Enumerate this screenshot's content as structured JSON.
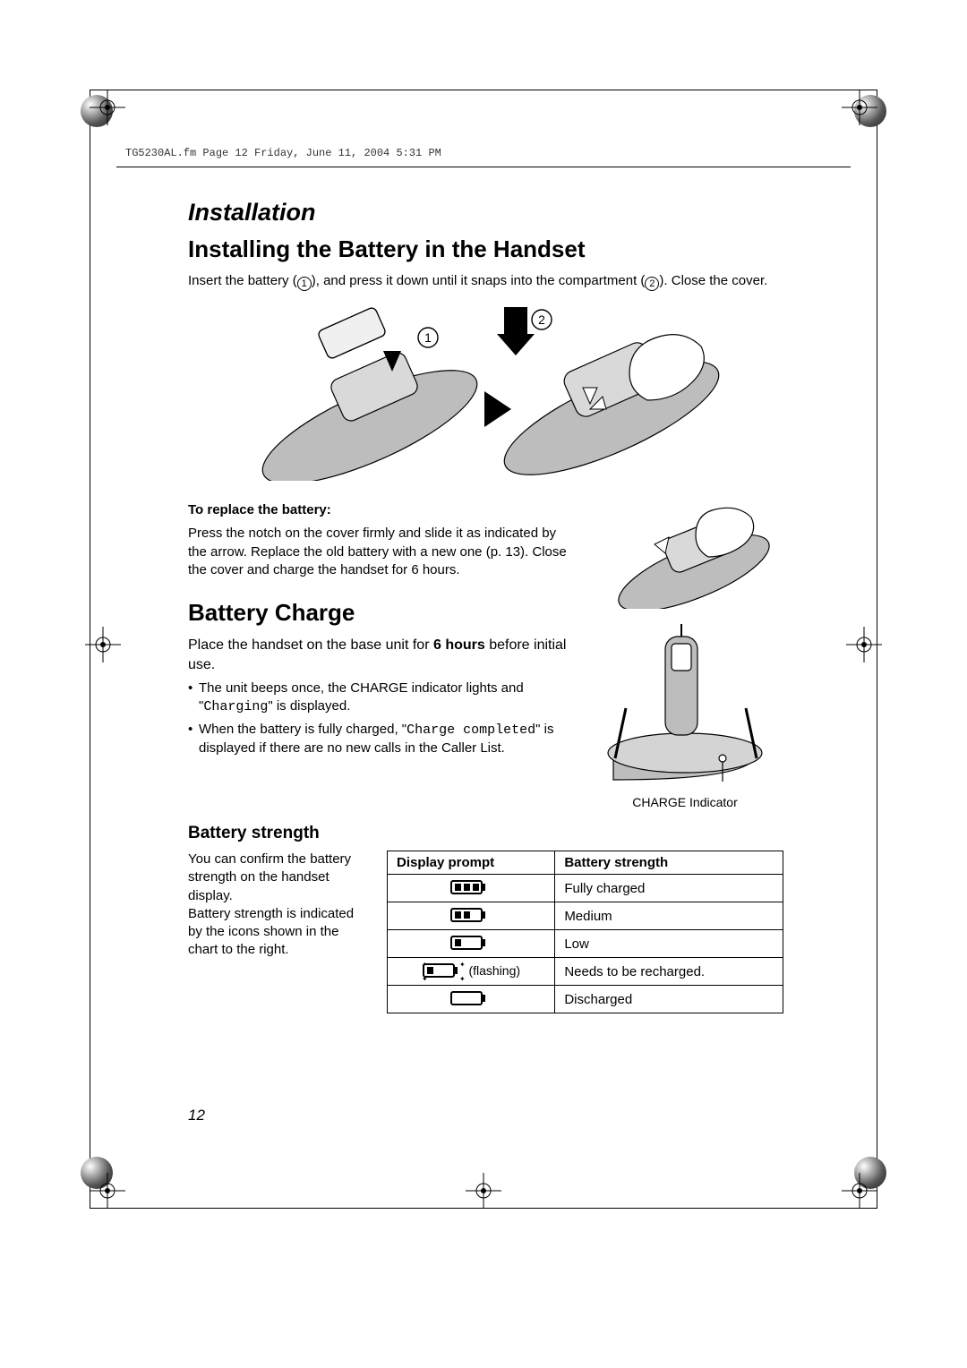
{
  "header_meta": "TG5230AL.fm  Page 12  Friday, June 11, 2004  5:31 PM",
  "page_number": "12",
  "section_title": "Installation",
  "install_heading": "Installing the Battery in the Handset",
  "install_text_pre": "Insert the battery (",
  "install_text_mid": "), and press it down until it snaps into the compartment (",
  "install_text_post": "). Close the cover.",
  "step1": "1",
  "step2": "2",
  "replace_heading": "To replace the battery:",
  "replace_text": "Press the notch on the cover firmly and slide it as indicated by the arrow. Replace the old battery with a new one (p. 13). Close the cover and charge the handset for 6 hours.",
  "charge_heading": "Battery Charge",
  "charge_text_1a": "Place the handset on the base unit for ",
  "charge_text_1b": "6 hours",
  "charge_text_1c": " before initial use.",
  "charge_bullet_1_pre": "The unit beeps once, the CHARGE indicator lights and \"",
  "charge_bullet_1_code": "Charging",
  "charge_bullet_1_post": "\" is displayed.",
  "charge_bullet_2_pre": "When the battery is fully charged, \"",
  "charge_bullet_2_code": "Charge completed",
  "charge_bullet_2_post": "\" is displayed if there are no new calls in the Caller List.",
  "charge_caption": "CHARGE Indicator",
  "strength_heading": "Battery strength",
  "strength_text": "You can confirm the battery strength on the handset display.\nBattery strength is indicated by the icons shown in the chart to the right.",
  "table": {
    "columns": [
      "Display prompt",
      "Battery strength"
    ],
    "rows": [
      {
        "bars": 3,
        "flashing": false,
        "empty": false,
        "label": "Fully charged"
      },
      {
        "bars": 2,
        "flashing": false,
        "empty": false,
        "label": "Medium"
      },
      {
        "bars": 1,
        "flashing": false,
        "empty": false,
        "label": "Low"
      },
      {
        "bars": 1,
        "flashing": true,
        "empty": false,
        "label": "Needs to be recharged."
      },
      {
        "bars": 0,
        "flashing": false,
        "empty": true,
        "label": "Discharged"
      }
    ],
    "flashing_word": "(flashing)"
  },
  "style": {
    "text_color": "#000000",
    "background": "#ffffff",
    "body_fontsize": 15,
    "h1_fontsize": 27,
    "h2_fontsize": 26,
    "h3_fontsize": 19,
    "table_border": "#000000"
  }
}
